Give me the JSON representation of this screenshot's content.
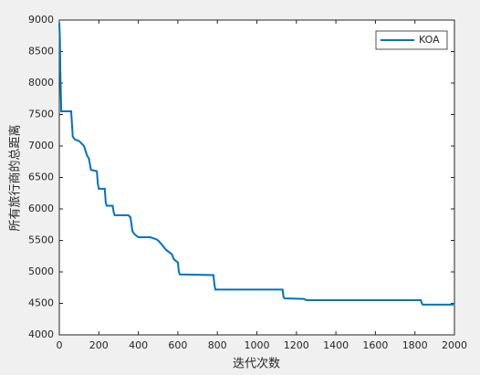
{
  "chart_data": {
    "type": "line",
    "x_label": "迭代次数",
    "y_label": "所有旅行商的总距离",
    "xlim": [
      0,
      2000
    ],
    "xticks": [
      0,
      200,
      400,
      600,
      800,
      1000,
      1200,
      1400,
      1600,
      1800,
      2000
    ],
    "ylim": [
      4000,
      9000
    ],
    "yticks": [
      4000,
      4500,
      5000,
      5500,
      6000,
      6500,
      7000,
      7500,
      8000,
      8500,
      9000
    ],
    "grid": false,
    "legend": "top-right",
    "x": [
      0,
      3,
      5,
      8,
      10,
      60,
      62,
      68,
      80,
      100,
      125,
      130,
      140,
      150,
      160,
      190,
      195,
      200,
      230,
      235,
      240,
      270,
      275,
      280,
      350,
      355,
      360,
      370,
      380,
      400,
      460,
      490,
      500,
      520,
      540,
      570,
      580,
      600,
      605,
      610,
      780,
      785,
      790,
      1130,
      1135,
      1140,
      1240,
      1245,
      1250,
      1830,
      1835,
      1840,
      1990,
      2000
    ],
    "series": [
      {
        "name": "KOA",
        "color": "#0072bd",
        "values": [
          8950,
          8700,
          8200,
          7800,
          7550,
          7550,
          7450,
          7150,
          7100,
          7080,
          7000,
          6950,
          6850,
          6800,
          6620,
          6600,
          6400,
          6320,
          6320,
          6100,
          6050,
          6050,
          5950,
          5900,
          5900,
          5880,
          5870,
          5650,
          5600,
          5550,
          5550,
          5520,
          5500,
          5430,
          5350,
          5280,
          5200,
          5150,
          5000,
          4960,
          4950,
          4800,
          4720,
          4720,
          4600,
          4580,
          4570,
          4560,
          4550,
          4550,
          4500,
          4480,
          4480,
          4500
        ]
      }
    ]
  }
}
